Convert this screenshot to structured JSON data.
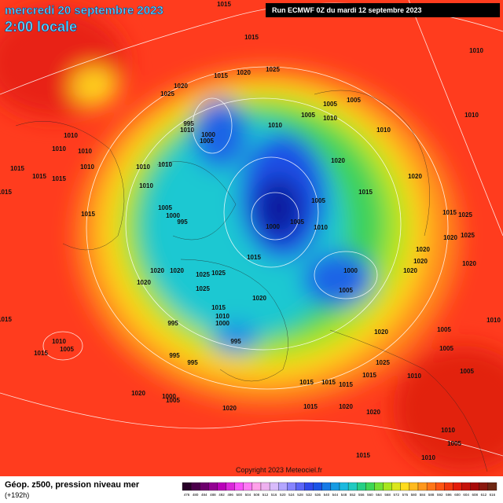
{
  "header": {
    "date": "mercredi 20 septembre 2023",
    "time": "2:00 locale",
    "run": "Run ECMWF 0Z du mardi 12 septembre 2023"
  },
  "map": {
    "copyright": "Copyright 2023 Meteociel.fr",
    "isobar_labels": [
      "1015",
      "1015",
      "1025",
      "1020",
      "1015",
      "1020",
      "1025",
      "1010",
      "995",
      "1000",
      "1005",
      "1010",
      "1005",
      "1005",
      "1005",
      "1010",
      "1010",
      "1020",
      "1020",
      "1015",
      "1005",
      "1005",
      "1010",
      "1000",
      "1015",
      "1025",
      "1020",
      "1025",
      "1020",
      "1020",
      "1020",
      "1020",
      "1000",
      "1005",
      "1015",
      "1020",
      "1020",
      "1020",
      "1020",
      "1025",
      "1025",
      "1025",
      "1015",
      "1010",
      "1000",
      "995",
      "995",
      "995",
      "995",
      "1020",
      "1005",
      "1005",
      "1025",
      "1010",
      "1005",
      "1015",
      "1015",
      "1015",
      "1015",
      "1020",
      "1015",
      "1020",
      "1020",
      "1010",
      "1005",
      "1010",
      "1015",
      "1015",
      "1015",
      "1015",
      "1015",
      "1010",
      "1010",
      "1010",
      "1010",
      "1015",
      "1010",
      "1010",
      "1010",
      "1005",
      "1000",
      "995",
      "1020",
      "1015",
      "1010",
      "1005",
      "1000",
      "1005",
      "1015",
      "1010",
      "1010",
      "1010"
    ]
  },
  "footer": {
    "title": "Géop. z500, pression niveau mer",
    "lead": "(+192h)",
    "scale": [
      "476",
      "480",
      "484",
      "488",
      "492",
      "496",
      "500",
      "504",
      "508",
      "512",
      "516",
      "520",
      "524",
      "528",
      "532",
      "536",
      "540",
      "544",
      "548",
      "552",
      "556",
      "560",
      "564",
      "568",
      "572",
      "576",
      "580",
      "584",
      "588",
      "592",
      "596",
      "600",
      "604",
      "608",
      "612",
      "616"
    ]
  }
}
